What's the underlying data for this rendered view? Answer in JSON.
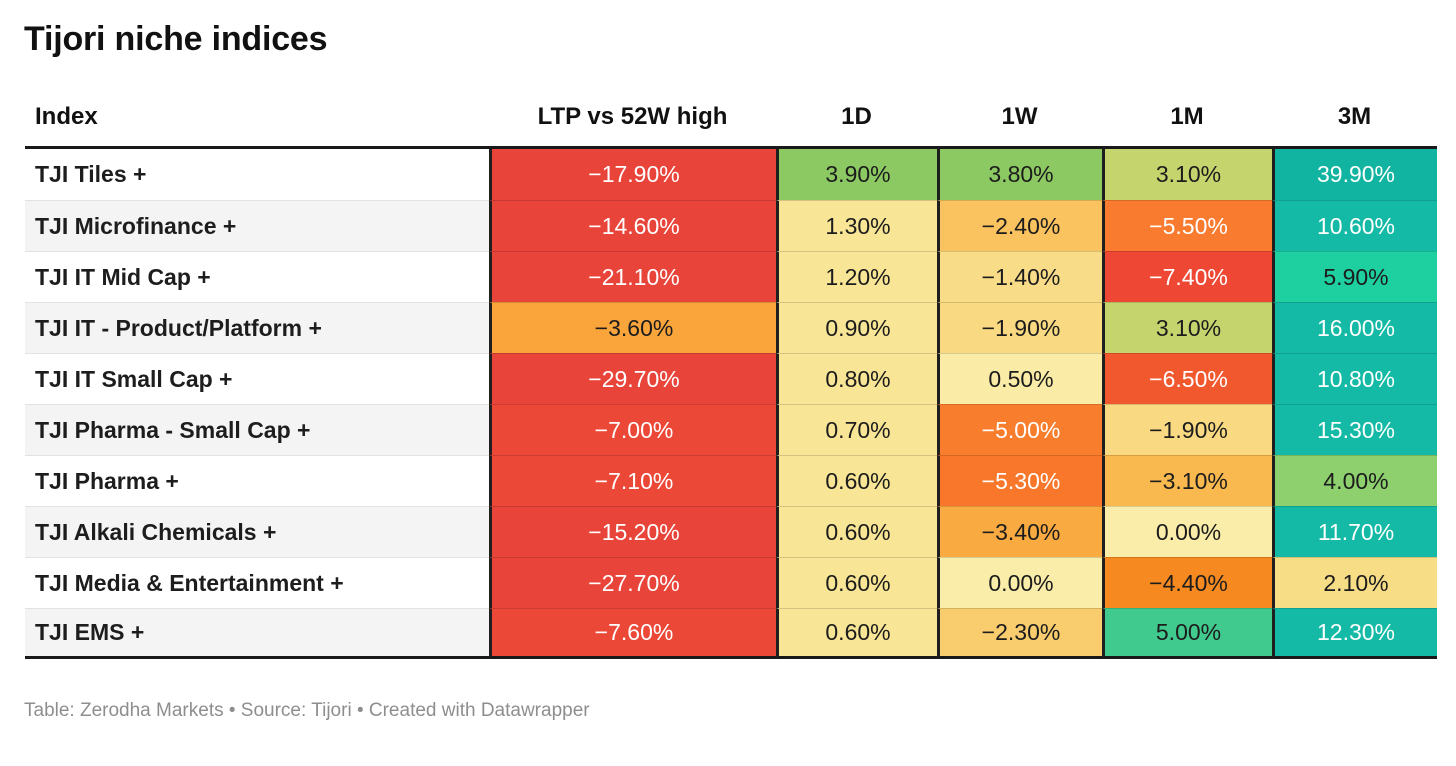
{
  "page": {
    "title": "Tijori niche indices",
    "footer": "Table: Zerodha Markets • Source: Tijori • Created with Datawrapper"
  },
  "colors": {
    "accent_red": "#e8443a",
    "accent_orange": "#f8792f",
    "accent_amber": "#f9a53c",
    "accent_yellow": "#f8e595",
    "accent_green": "#8cc963",
    "accent_teal": "#12b8a2",
    "header_rule": "#191919",
    "alt_row_bg": "#f4f4f4",
    "footer_text": "#8e8e8e"
  },
  "table": {
    "columns": [
      {
        "label": "Index"
      },
      {
        "label": "LTP vs 52W high"
      },
      {
        "label": "1D"
      },
      {
        "label": "1W"
      },
      {
        "label": "1M"
      },
      {
        "label": "3M"
      }
    ]
  },
  "chart_data": {
    "type": "table",
    "title": "Tijori niche indices",
    "columns": [
      "Index",
      "LTP vs 52W high",
      "1D",
      "1W",
      "1M",
      "3M"
    ],
    "rows": [
      {
        "label": "TJI Tiles +",
        "values": {
          "ltp_vs_52w_high": -17.9,
          "d1": 3.9,
          "w1": 3.8,
          "m1": 3.1,
          "m3": 39.9
        },
        "cells": [
          {
            "text": "−17.90%",
            "bg": "#e8443a",
            "fg": "#ffffff"
          },
          {
            "text": "3.90%",
            "bg": "#8cc963",
            "fg": "#1c1c1c"
          },
          {
            "text": "3.80%",
            "bg": "#8cc963",
            "fg": "#1c1c1c"
          },
          {
            "text": "3.10%",
            "bg": "#c6d46d",
            "fg": "#1c1c1c"
          },
          {
            "text": "39.90%",
            "bg": "#10b4a0",
            "fg": "#ffffff"
          }
        ]
      },
      {
        "label": "TJI Microfinance +",
        "values": {
          "ltp_vs_52w_high": -14.6,
          "d1": 1.3,
          "w1": -2.4,
          "m1": -5.5,
          "m3": 10.6
        },
        "cells": [
          {
            "text": "−14.60%",
            "bg": "#e8443a",
            "fg": "#ffffff"
          },
          {
            "text": "1.30%",
            "bg": "#f8e595",
            "fg": "#1c1c1c"
          },
          {
            "text": "−2.40%",
            "bg": "#fbc35f",
            "fg": "#1c1c1c"
          },
          {
            "text": "−5.50%",
            "bg": "#f87b30",
            "fg": "#ffffff"
          },
          {
            "text": "10.60%",
            "bg": "#14baa5",
            "fg": "#ffffff"
          }
        ]
      },
      {
        "label": "TJI IT Mid Cap +",
        "values": {
          "ltp_vs_52w_high": -21.1,
          "d1": 1.2,
          "w1": -1.4,
          "m1": -7.4,
          "m3": 5.9
        },
        "cells": [
          {
            "text": "−21.10%",
            "bg": "#e8443a",
            "fg": "#ffffff"
          },
          {
            "text": "1.20%",
            "bg": "#f8e595",
            "fg": "#1c1c1c"
          },
          {
            "text": "−1.40%",
            "bg": "#f9dc88",
            "fg": "#1c1c1c"
          },
          {
            "text": "−7.40%",
            "bg": "#ee4734",
            "fg": "#ffffff"
          },
          {
            "text": "5.90%",
            "bg": "#1ecfa0",
            "fg": "#1c1c1c"
          }
        ]
      },
      {
        "label": "TJI IT - Product/Platform +",
        "values": {
          "ltp_vs_52w_high": -3.6,
          "d1": 0.9,
          "w1": -1.9,
          "m1": 3.1,
          "m3": 16.0
        },
        "cells": [
          {
            "text": "−3.60%",
            "bg": "#f9a53c",
            "fg": "#1c1c1c"
          },
          {
            "text": "0.90%",
            "bg": "#f8e595",
            "fg": "#1c1c1c"
          },
          {
            "text": "−1.90%",
            "bg": "#f9d981",
            "fg": "#1c1c1c"
          },
          {
            "text": "3.10%",
            "bg": "#c6d46d",
            "fg": "#1c1c1c"
          },
          {
            "text": "16.00%",
            "bg": "#14baa5",
            "fg": "#ffffff"
          }
        ]
      },
      {
        "label": "TJI IT Small Cap +",
        "values": {
          "ltp_vs_52w_high": -29.7,
          "d1": 0.8,
          "w1": 0.5,
          "m1": -6.5,
          "m3": 10.8
        },
        "cells": [
          {
            "text": "−29.70%",
            "bg": "#e8443a",
            "fg": "#ffffff"
          },
          {
            "text": "0.80%",
            "bg": "#f8e595",
            "fg": "#1c1c1c"
          },
          {
            "text": "0.50%",
            "bg": "#faeca7",
            "fg": "#1c1c1c"
          },
          {
            "text": "−6.50%",
            "bg": "#f1582e",
            "fg": "#ffffff"
          },
          {
            "text": "10.80%",
            "bg": "#14baa5",
            "fg": "#ffffff"
          }
        ]
      },
      {
        "label": "TJI Pharma - Small Cap +",
        "values": {
          "ltp_vs_52w_high": -7.0,
          "d1": 0.7,
          "w1": -5.0,
          "m1": -1.9,
          "m3": 15.3
        },
        "cells": [
          {
            "text": "−7.00%",
            "bg": "#ec4837",
            "fg": "#ffffff"
          },
          {
            "text": "0.70%",
            "bg": "#f8e595",
            "fg": "#1c1c1c"
          },
          {
            "text": "−5.00%",
            "bg": "#f87d2d",
            "fg": "#ffffff"
          },
          {
            "text": "−1.90%",
            "bg": "#f9d981",
            "fg": "#1c1c1c"
          },
          {
            "text": "15.30%",
            "bg": "#14baa5",
            "fg": "#ffffff"
          }
        ]
      },
      {
        "label": "TJI Pharma +",
        "values": {
          "ltp_vs_52w_high": -7.1,
          "d1": 0.6,
          "w1": -5.3,
          "m1": -3.1,
          "m3": 4.0
        },
        "cells": [
          {
            "text": "−7.10%",
            "bg": "#ec4837",
            "fg": "#ffffff"
          },
          {
            "text": "0.60%",
            "bg": "#f8e595",
            "fg": "#1c1c1c"
          },
          {
            "text": "−5.30%",
            "bg": "#f8772a",
            "fg": "#ffffff"
          },
          {
            "text": "−3.10%",
            "bg": "#f9b94f",
            "fg": "#1c1c1c"
          },
          {
            "text": "4.00%",
            "bg": "#8dd06d",
            "fg": "#1c1c1c"
          }
        ]
      },
      {
        "label": "TJI Alkali Chemicals +",
        "values": {
          "ltp_vs_52w_high": -15.2,
          "d1": 0.6,
          "w1": -3.4,
          "m1": 0.0,
          "m3": 11.7
        },
        "cells": [
          {
            "text": "−15.20%",
            "bg": "#e8443a",
            "fg": "#ffffff"
          },
          {
            "text": "0.60%",
            "bg": "#f8e595",
            "fg": "#1c1c1c"
          },
          {
            "text": "−3.40%",
            "bg": "#f9aa41",
            "fg": "#1c1c1c"
          },
          {
            "text": "0.00%",
            "bg": "#faeda9",
            "fg": "#1c1c1c"
          },
          {
            "text": "11.70%",
            "bg": "#14baa5",
            "fg": "#ffffff"
          }
        ]
      },
      {
        "label": "TJI Media & Entertainment +",
        "values": {
          "ltp_vs_52w_high": -27.7,
          "d1": 0.6,
          "w1": 0.0,
          "m1": -4.4,
          "m3": 2.1
        },
        "cells": [
          {
            "text": "−27.70%",
            "bg": "#e8443a",
            "fg": "#ffffff"
          },
          {
            "text": "0.60%",
            "bg": "#f8e595",
            "fg": "#1c1c1c"
          },
          {
            "text": "0.00%",
            "bg": "#faeda9",
            "fg": "#1c1c1c"
          },
          {
            "text": "−4.40%",
            "bg": "#f68a21",
            "fg": "#1c1c1c"
          },
          {
            "text": "2.10%",
            "bg": "#f8dd87",
            "fg": "#1c1c1c"
          }
        ]
      },
      {
        "label": "TJI EMS +",
        "values": {
          "ltp_vs_52w_high": -7.6,
          "d1": 0.6,
          "w1": -2.3,
          "m1": 5.0,
          "m3": 12.3
        },
        "cells": [
          {
            "text": "−7.60%",
            "bg": "#ec4837",
            "fg": "#ffffff"
          },
          {
            "text": "0.60%",
            "bg": "#f8e595",
            "fg": "#1c1c1c"
          },
          {
            "text": "−2.30%",
            "bg": "#f9cd6e",
            "fg": "#1c1c1c"
          },
          {
            "text": "5.00%",
            "bg": "#41ca8e",
            "fg": "#1c1c1c"
          },
          {
            "text": "12.30%",
            "bg": "#14baa5",
            "fg": "#ffffff"
          }
        ]
      }
    ]
  }
}
